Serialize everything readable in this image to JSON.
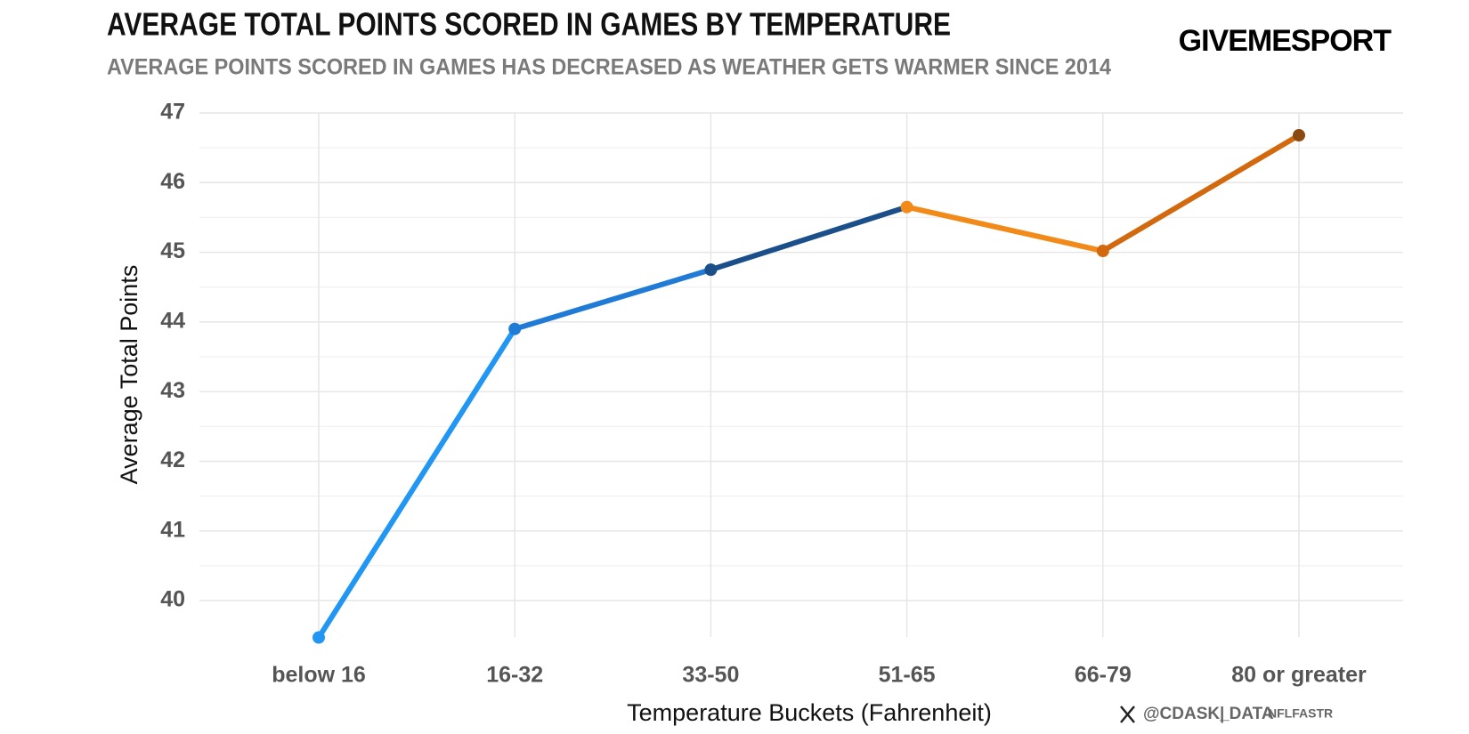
{
  "chart_data": {
    "type": "line",
    "title": "AVERAGE TOTAL POINTS SCORED IN GAMES BY TEMPERATURE",
    "subtitle": "AVERAGE POINTS SCORED IN GAMES HAS DECREASED AS WEATHER GETS WARMER SINCE 2014",
    "brand": "GIVEMESPORT",
    "credit_handle": "@CDASK_",
    "credit_source_label": "| DATA",
    "credit_source": "NFLFASTR",
    "x_label": "Temperature Buckets (Fahrenheit)",
    "y_label": "Average Total Points",
    "categories": [
      "below 16",
      "16-32",
      "33-50",
      "51-65",
      "66-79",
      "80 or greater"
    ],
    "values": [
      39.47,
      43.9,
      44.75,
      45.65,
      45.02,
      46.68
    ],
    "point_colors": [
      "#2196f3",
      "#1f7bd6",
      "#1a4f8a",
      "#f28a1a",
      "#d2690f",
      "#8b4a12"
    ],
    "ylim": [
      39.4,
      47
    ],
    "yticks": [
      40,
      41,
      42,
      43,
      44,
      45,
      46,
      47
    ],
    "grid": true,
    "minor_grid": true
  }
}
